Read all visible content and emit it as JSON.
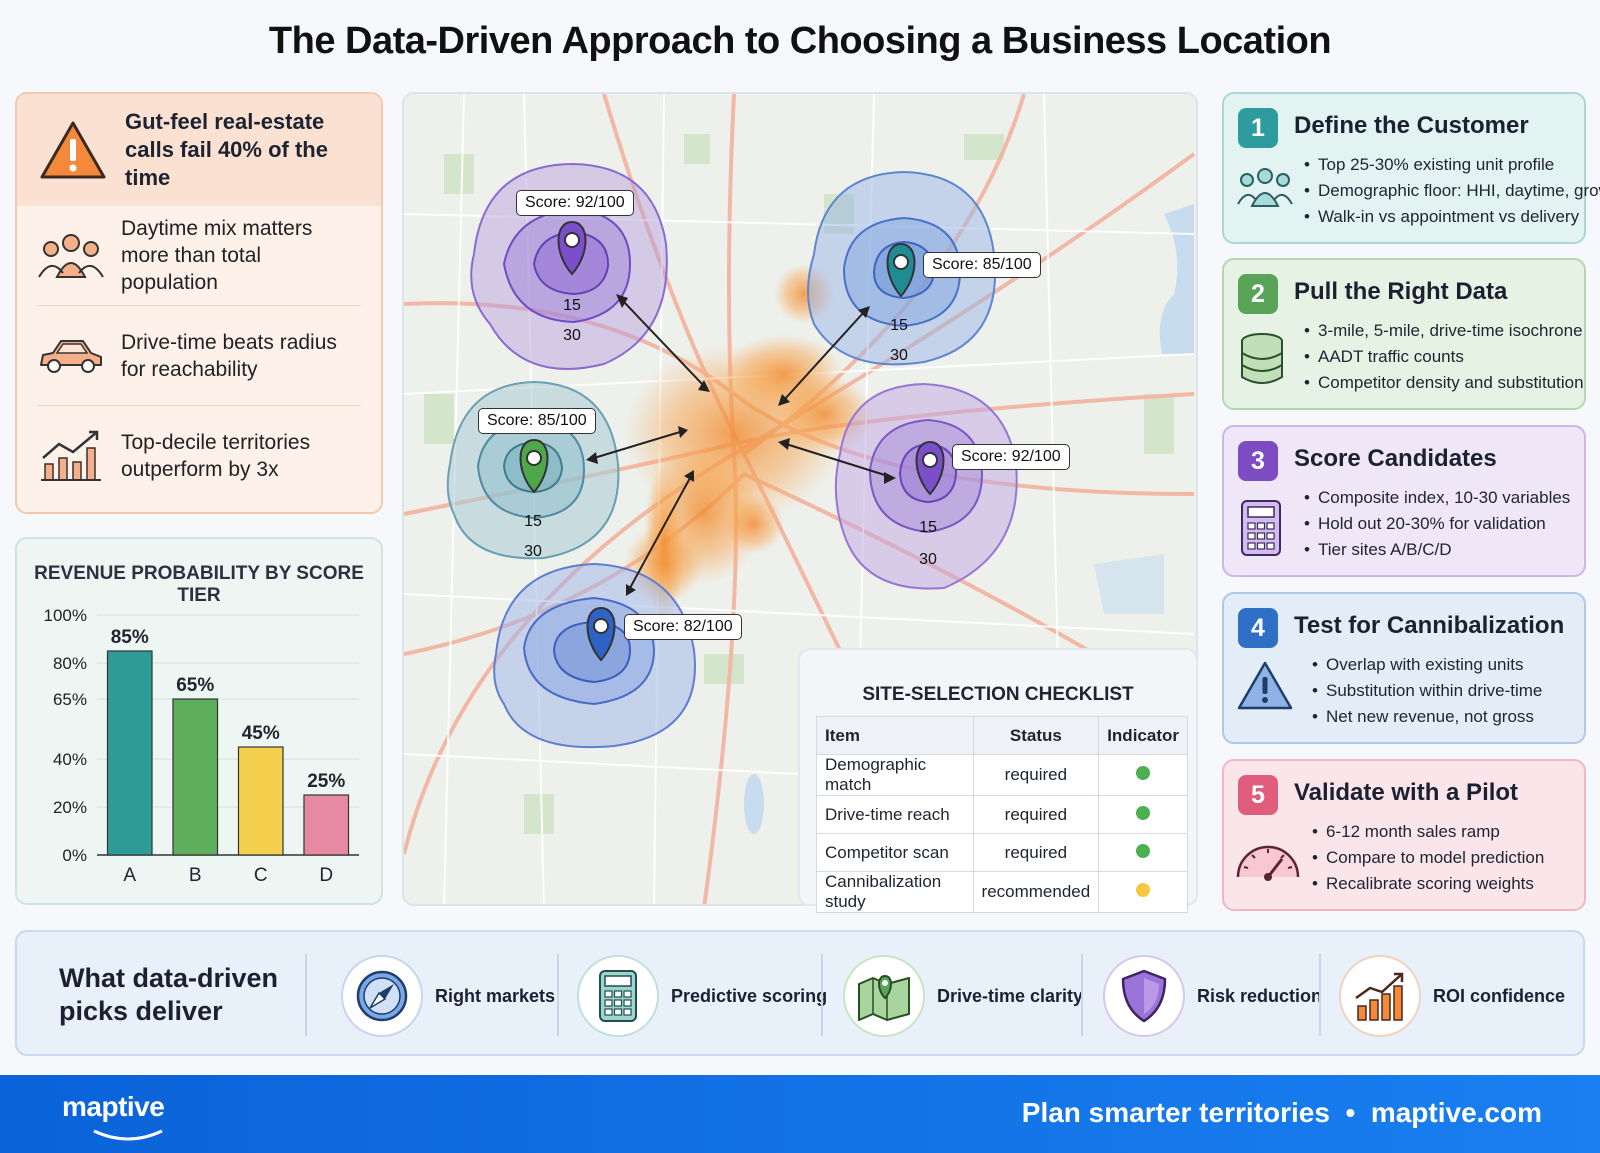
{
  "title": "The Data-Driven Approach to Choosing a Business Location",
  "insights": {
    "headline": "Gut-feel real-estate calls fail 40% of the time",
    "items": [
      {
        "icon": "people-icon",
        "text": "Daytime mix matters more than total population"
      },
      {
        "icon": "car-icon",
        "text": "Drive-time beats radius for reachability"
      },
      {
        "icon": "growth-chart-icon",
        "text": "Top-decile territories outperform by 3x"
      }
    ]
  },
  "chart_data": {
    "type": "bar",
    "title": "REVENUE PROBABILITY BY SCORE TIER",
    "categories": [
      "A",
      "B",
      "C",
      "D"
    ],
    "values": [
      85,
      65,
      45,
      25
    ],
    "value_labels": [
      "85%",
      "65%",
      "45%",
      "25%"
    ],
    "yticks": [
      0,
      20,
      40,
      65,
      80,
      100
    ],
    "ytick_labels": [
      "0%",
      "20%",
      "40%",
      "65%",
      "80%",
      "100%"
    ],
    "ylim": [
      0,
      100
    ],
    "colors": [
      "#2e9c96",
      "#5fae5c",
      "#f4cf4e",
      "#e68aa3"
    ],
    "grid": true
  },
  "map": {
    "sites": [
      {
        "score": "Score: 92/100",
        "ring_inner": "15",
        "ring_outer": "30",
        "color": "#7b4fc9"
      },
      {
        "score": "Score: 85/100",
        "ring_inner": "15",
        "ring_outer": "30",
        "color": "#1f8c94"
      },
      {
        "score": "Score: 85/100",
        "ring_inner": "15",
        "ring_outer": "30",
        "color": "#4ea84a"
      },
      {
        "score": "Score: 92/100",
        "ring_inner": "15",
        "ring_outer": "30",
        "color": "#7b4fc9"
      },
      {
        "score": "Score: 82/100",
        "ring_inner": "",
        "ring_outer": "",
        "color": "#2e62c4"
      }
    ]
  },
  "checklist": {
    "title": "SITE-SELECTION CHECKLIST",
    "headers": [
      "Item",
      "Status",
      "Indicator"
    ],
    "rows": [
      {
        "item": "Demographic match",
        "status": "required",
        "indicator": "#4caf50"
      },
      {
        "item": "Drive-time reach",
        "status": "required",
        "indicator": "#4caf50"
      },
      {
        "item": "Competitor scan",
        "status": "required",
        "indicator": "#4caf50"
      },
      {
        "item": "Cannibalization study",
        "status": "recommended",
        "indicator": "#f5c842"
      }
    ]
  },
  "steps": [
    {
      "num": "1",
      "title": "Define the Customer",
      "icon": "customers-icon",
      "bullets": [
        "Top 25-30% existing unit profile",
        "Demographic floor: HHI, daytime, growth",
        "Walk-in vs appointment vs delivery"
      ]
    },
    {
      "num": "2",
      "title": "Pull the Right Data",
      "icon": "database-icon",
      "bullets": [
        "3-mile, 5-mile, drive-time isochrone",
        "AADT traffic counts",
        "Competitor density and substitution"
      ]
    },
    {
      "num": "3",
      "title": "Score Candidates",
      "icon": "calculator-icon",
      "bullets": [
        "Composite index, 10-30 variables",
        "Hold out 20-30% for validation",
        "Tier sites A/B/C/D"
      ]
    },
    {
      "num": "4",
      "title": "Test for Cannibalization",
      "icon": "warning-icon",
      "bullets": [
        "Overlap with existing units",
        "Substitution within drive-time",
        "Net new revenue, not gross"
      ]
    },
    {
      "num": "5",
      "title": "Validate with a Pilot",
      "icon": "gauge-icon",
      "bullets": [
        "6-12 month sales ramp",
        "Compare to model prediction",
        "Recalibrate scoring weights"
      ]
    }
  ],
  "benefits": {
    "headline": "What data-driven picks deliver",
    "items": [
      {
        "icon": "compass-icon",
        "label": "Right markets"
      },
      {
        "icon": "calculator-icon",
        "label": "Predictive scoring"
      },
      {
        "icon": "map-pin-icon",
        "label": "Drive-time clarity"
      },
      {
        "icon": "shield-icon",
        "label": "Risk reduction"
      },
      {
        "icon": "roi-chart-icon",
        "label": "ROI confidence"
      }
    ]
  },
  "footer": {
    "logo": "maptive",
    "tagline": "Plan smarter territories  •  maptive.com"
  },
  "colors": {
    "step1": "#2e9c9e",
    "step2": "#5aa45a",
    "step3": "#7d4cc2",
    "step4": "#2f6fc6",
    "step5": "#e05d7e",
    "footer": "#0a63d8"
  }
}
